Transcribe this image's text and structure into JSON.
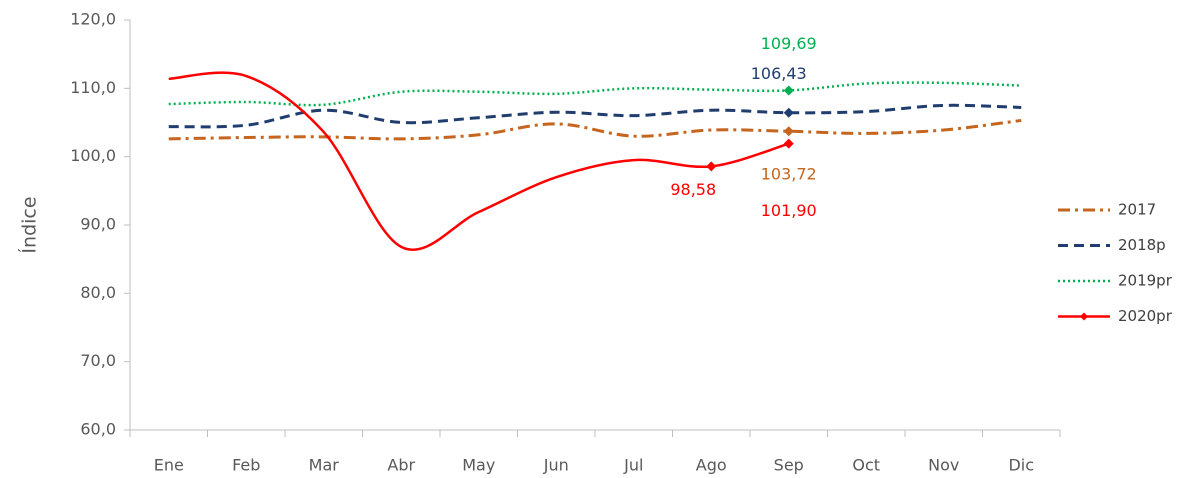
{
  "chart_data": {
    "type": "line",
    "y_label": "Índice",
    "categories": [
      "Ene",
      "Feb",
      "Mar",
      "Abr",
      "May",
      "Jun",
      "Jul",
      "Ago",
      "Sep",
      "Oct",
      "Nov",
      "Dic"
    ],
    "ylim": [
      60,
      120
    ],
    "yticks": [
      {
        "value": 60,
        "label": "60,0"
      },
      {
        "value": 70,
        "label": "70,0"
      },
      {
        "value": 80,
        "label": "80,0"
      },
      {
        "value": 90,
        "label": "90,0"
      },
      {
        "value": 100,
        "label": "100,0"
      },
      {
        "value": 110,
        "label": "110,0"
      },
      {
        "value": 120,
        "label": "120,0"
      }
    ],
    "grid": false,
    "legend": "right",
    "series": [
      {
        "name": "2017",
        "color": "#c5651e",
        "line_style": "dashdot",
        "values": [
          102.6,
          102.8,
          102.9,
          102.6,
          103.2,
          104.8,
          103.0,
          103.9,
          103.72,
          103.4,
          103.9,
          105.3
        ],
        "value_labels": [
          null,
          null,
          null,
          null,
          null,
          null,
          null,
          null,
          "103,72",
          null,
          null,
          null
        ]
      },
      {
        "name": "2018p",
        "color": "#1f3d6e",
        "line_style": "dashed",
        "values": [
          104.4,
          104.6,
          106.8,
          105.0,
          105.7,
          106.5,
          106.0,
          106.8,
          106.43,
          106.6,
          107.5,
          107.2
        ],
        "value_labels": [
          null,
          null,
          null,
          null,
          null,
          null,
          null,
          null,
          "106,43",
          null,
          null,
          null
        ]
      },
      {
        "name": "2019pr",
        "color": "#00b050",
        "line_style": "dotted",
        "values": [
          107.7,
          108.0,
          107.6,
          109.5,
          109.5,
          109.2,
          110.0,
          109.8,
          109.69,
          110.7,
          110.8,
          110.4
        ],
        "value_labels": [
          null,
          null,
          null,
          null,
          null,
          null,
          null,
          null,
          "109,69",
          null,
          null,
          null
        ]
      },
      {
        "name": "2020pr",
        "color": "#ff0000",
        "line_style": "solid",
        "values": [
          111.4,
          111.8,
          103.6,
          86.8,
          91.9,
          97.0,
          99.5,
          98.58,
          101.9,
          null,
          null,
          null
        ],
        "value_labels": [
          null,
          null,
          null,
          null,
          null,
          null,
          null,
          "98,58",
          "101,90",
          null,
          null,
          null
        ]
      }
    ]
  }
}
